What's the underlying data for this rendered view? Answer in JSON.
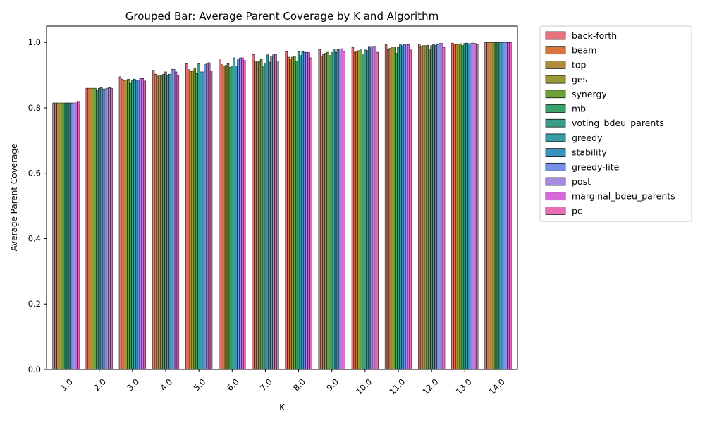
{
  "chart_data": {
    "type": "bar",
    "title": "Grouped Bar: Average Parent Coverage by K and Algorithm",
    "xlabel": "K",
    "ylabel": "Average Parent Coverage",
    "ylim": [
      0,
      1.05
    ],
    "yticks": [
      0.0,
      0.2,
      0.4,
      0.6,
      0.8,
      1.0
    ],
    "grid": false,
    "legend_position": "outside-top-right",
    "categories": [
      "1.0",
      "2.0",
      "3.0",
      "4.0",
      "5.0",
      "6.0",
      "7.0",
      "8.0",
      "9.0",
      "10.0",
      "11.0",
      "12.0",
      "13.0",
      "14.0"
    ],
    "series": [
      {
        "name": "back-forth",
        "color": "#e8727e",
        "values": [
          0.815,
          0.86,
          0.895,
          0.915,
          0.935,
          0.95,
          0.963,
          0.972,
          0.978,
          0.985,
          0.993,
          0.995,
          0.998,
          1.0
        ]
      },
      {
        "name": "beam",
        "color": "#d9743e",
        "values": [
          0.815,
          0.86,
          0.888,
          0.903,
          0.917,
          0.932,
          0.943,
          0.955,
          0.958,
          0.97,
          0.978,
          0.988,
          0.995,
          1.0
        ]
      },
      {
        "name": "top",
        "color": "#b08a3e",
        "values": [
          0.815,
          0.86,
          0.883,
          0.897,
          0.912,
          0.927,
          0.94,
          0.95,
          0.963,
          0.973,
          0.982,
          0.99,
          0.994,
          1.0
        ]
      },
      {
        "name": "ges",
        "color": "#9a9a3a",
        "values": [
          0.815,
          0.86,
          0.885,
          0.9,
          0.914,
          0.93,
          0.942,
          0.955,
          0.967,
          0.975,
          0.984,
          0.99,
          0.995,
          1.0
        ]
      },
      {
        "name": "synergy",
        "color": "#6da03a",
        "values": [
          0.815,
          0.86,
          0.888,
          0.898,
          0.922,
          0.935,
          0.948,
          0.958,
          0.97,
          0.977,
          0.986,
          0.991,
          0.996,
          1.0
        ]
      },
      {
        "name": "mb",
        "color": "#3aa36a",
        "values": [
          0.815,
          0.853,
          0.875,
          0.903,
          0.905,
          0.924,
          0.928,
          0.943,
          0.96,
          0.962,
          0.967,
          0.98,
          0.99,
          1.0
        ]
      },
      {
        "name": "voting_bdeu_parents",
        "color": "#3a9c8a",
        "values": [
          0.815,
          0.86,
          0.883,
          0.91,
          0.935,
          0.927,
          0.937,
          0.972,
          0.969,
          0.977,
          0.985,
          0.99,
          0.997,
          1.0
        ]
      },
      {
        "name": "greedy",
        "color": "#3b9ca6",
        "values": [
          0.815,
          0.862,
          0.888,
          0.898,
          0.91,
          0.953,
          0.962,
          0.96,
          0.98,
          0.975,
          0.993,
          0.993,
          0.998,
          1.0
        ]
      },
      {
        "name": "stability",
        "color": "#3a93bb",
        "values": [
          0.815,
          0.858,
          0.883,
          0.903,
          0.91,
          0.928,
          0.94,
          0.972,
          0.97,
          0.988,
          0.99,
          0.991,
          0.996,
          1.0
        ]
      },
      {
        "name": "greedy-lite",
        "color": "#7690e6",
        "values": [
          0.815,
          0.858,
          0.885,
          0.918,
          0.932,
          0.95,
          0.958,
          0.97,
          0.978,
          0.987,
          0.993,
          0.994,
          0.997,
          1.0
        ]
      },
      {
        "name": "post",
        "color": "#a889e2",
        "values": [
          0.815,
          0.86,
          0.89,
          0.918,
          0.937,
          0.953,
          0.962,
          0.97,
          0.98,
          0.988,
          0.995,
          0.997,
          0.998,
          1.0
        ]
      },
      {
        "name": "marginal_bdeu_parents",
        "color": "#d66ad9",
        "values": [
          0.818,
          0.862,
          0.89,
          0.91,
          0.938,
          0.953,
          0.963,
          0.969,
          0.981,
          0.988,
          0.993,
          0.997,
          0.997,
          1.0
        ]
      },
      {
        "name": "pc",
        "color": "#e86fb3",
        "values": [
          0.82,
          0.86,
          0.882,
          0.898,
          0.913,
          0.945,
          0.943,
          0.953,
          0.972,
          0.97,
          0.977,
          0.985,
          0.994,
          1.0
        ]
      }
    ]
  }
}
